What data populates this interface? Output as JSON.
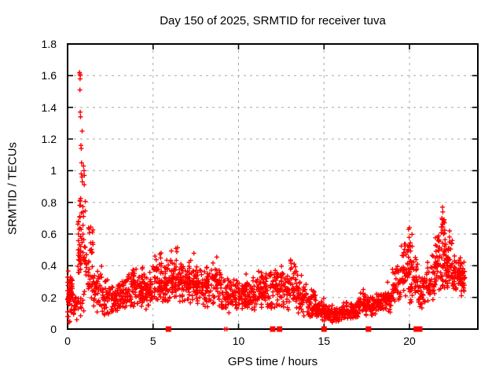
{
  "title": "Day 150 of 2025, SRMTID for receiver tuva",
  "x_axis": {
    "label": "GPS time / hours",
    "tick_labels": [
      "0",
      "5",
      "10",
      "15",
      "20"
    ]
  },
  "y_axis": {
    "label": "SRMTID / TECUs",
    "tick_labels": [
      "0",
      "0.2",
      "0.4",
      "0.6",
      "0.8",
      "1",
      "1.2",
      "1.4",
      "1.6",
      "1.8"
    ]
  },
  "colors": {
    "points": "#ff0000",
    "grid": "#a8a8a8",
    "axis": "#000000",
    "background": "#ffffff",
    "text": "#000000"
  },
  "chart_data": {
    "type": "scatter",
    "title": "Day 150 of 2025, SRMTID for receiver tuva",
    "xlabel": "GPS time / hours",
    "ylabel": "SRMTID / TECUs",
    "xlim": [
      0,
      24
    ],
    "ylim": [
      0,
      1.8
    ],
    "x_ticks": [
      0,
      5,
      10,
      15,
      20
    ],
    "y_ticks": [
      0,
      0.2,
      0.4,
      0.6,
      0.8,
      1.0,
      1.2,
      1.4,
      1.6,
      1.8
    ],
    "grid": true,
    "legend": false,
    "marker": "plus",
    "marker_color": "#ff0000",
    "bins_format": [
      "hour_start",
      "hour_end",
      "value_min",
      "value_max",
      "n_points"
    ],
    "bins": [
      [
        0.0,
        0.3,
        0.14,
        0.38,
        55
      ],
      [
        0.0,
        0.3,
        0.04,
        0.14,
        8
      ],
      [
        0.3,
        0.6,
        0.05,
        0.28,
        22
      ],
      [
        0.6,
        1.05,
        0.28,
        0.92,
        60
      ],
      [
        0.6,
        1.0,
        0.03,
        0.26,
        14
      ],
      [
        1.05,
        1.5,
        0.18,
        0.68,
        40
      ],
      [
        1.5,
        2.0,
        0.08,
        0.44,
        38
      ],
      [
        2.0,
        2.5,
        0.08,
        0.34,
        45
      ],
      [
        2.5,
        3.0,
        0.09,
        0.31,
        45
      ],
      [
        3.0,
        3.5,
        0.12,
        0.36,
        46
      ],
      [
        3.5,
        4.0,
        0.13,
        0.4,
        46
      ],
      [
        4.0,
        4.5,
        0.12,
        0.43,
        50
      ],
      [
        4.5,
        5.0,
        0.12,
        0.38,
        46
      ],
      [
        5.0,
        5.5,
        0.15,
        0.53,
        50
      ],
      [
        5.5,
        6.0,
        0.15,
        0.45,
        50
      ],
      [
        6.0,
        6.5,
        0.17,
        0.55,
        50
      ],
      [
        6.5,
        7.0,
        0.15,
        0.46,
        50
      ],
      [
        7.0,
        7.5,
        0.16,
        0.48,
        50
      ],
      [
        7.5,
        8.0,
        0.14,
        0.42,
        46
      ],
      [
        8.0,
        8.5,
        0.12,
        0.46,
        45
      ],
      [
        8.5,
        9.0,
        0.12,
        0.48,
        45
      ],
      [
        9.0,
        9.5,
        0.1,
        0.36,
        40
      ],
      [
        9.5,
        10.0,
        0.1,
        0.38,
        40
      ],
      [
        10.0,
        10.5,
        0.1,
        0.36,
        45
      ],
      [
        10.5,
        11.0,
        0.1,
        0.33,
        45
      ],
      [
        11.0,
        11.5,
        0.11,
        0.41,
        45
      ],
      [
        11.5,
        12.0,
        0.1,
        0.45,
        45
      ],
      [
        12.0,
        12.5,
        0.1,
        0.42,
        45
      ],
      [
        12.5,
        13.0,
        0.1,
        0.41,
        42
      ],
      [
        13.0,
        13.5,
        0.11,
        0.48,
        42
      ],
      [
        13.5,
        14.0,
        0.08,
        0.36,
        42
      ],
      [
        14.0,
        14.5,
        0.06,
        0.28,
        42
      ],
      [
        14.5,
        15.0,
        0.05,
        0.22,
        42
      ],
      [
        15.0,
        15.5,
        0.04,
        0.18,
        46
      ],
      [
        15.5,
        16.0,
        0.04,
        0.16,
        46
      ],
      [
        16.0,
        16.5,
        0.05,
        0.18,
        46
      ],
      [
        16.5,
        17.0,
        0.06,
        0.2,
        42
      ],
      [
        17.0,
        17.5,
        0.07,
        0.25,
        42
      ],
      [
        17.5,
        18.0,
        0.08,
        0.22,
        42
      ],
      [
        18.0,
        18.5,
        0.09,
        0.26,
        42
      ],
      [
        18.5,
        19.0,
        0.1,
        0.3,
        42
      ],
      [
        19.0,
        19.5,
        0.12,
        0.42,
        42
      ],
      [
        19.5,
        20.0,
        0.18,
        0.6,
        46
      ],
      [
        19.9,
        20.2,
        0.35,
        0.64,
        14
      ],
      [
        20.0,
        20.5,
        0.15,
        0.52,
        38
      ],
      [
        20.5,
        21.0,
        0.12,
        0.38,
        36
      ],
      [
        21.0,
        21.5,
        0.15,
        0.48,
        45
      ],
      [
        21.5,
        22.0,
        0.22,
        0.66,
        52
      ],
      [
        21.85,
        22.1,
        0.55,
        0.77,
        12
      ],
      [
        22.0,
        22.5,
        0.25,
        0.6,
        55
      ],
      [
        22.5,
        23.0,
        0.22,
        0.5,
        55
      ],
      [
        23.0,
        23.25,
        0.2,
        0.45,
        26
      ]
    ],
    "outliers": [
      [
        0.7,
        1.62
      ],
      [
        0.72,
        1.61
      ],
      [
        0.74,
        1.6
      ],
      [
        0.73,
        1.58
      ],
      [
        0.72,
        1.51
      ],
      [
        0.74,
        1.37
      ],
      [
        0.76,
        1.34
      ],
      [
        0.85,
        1.25
      ],
      [
        0.78,
        1.16
      ],
      [
        0.8,
        1.14
      ],
      [
        0.82,
        1.05
      ],
      [
        0.93,
        1.03
      ],
      [
        0.96,
        1.0
      ],
      [
        0.8,
        0.98
      ],
      [
        0.98,
        0.97
      ],
      [
        0.84,
        0.96
      ],
      [
        0.86,
        0.93
      ],
      [
        19.95,
        0.63
      ],
      [
        20.0,
        0.64
      ],
      [
        21.9,
        0.7
      ],
      [
        21.93,
        0.77
      ],
      [
        21.95,
        0.74
      ],
      [
        22.35,
        0.62
      ],
      [
        17.3,
        0.25
      ],
      [
        23.2,
        0.24
      ]
    ],
    "zero_markers": {
      "squares": [
        5.9,
        12.0,
        12.4,
        15.0,
        17.6,
        20.4,
        20.6
      ],
      "plus_marks": [
        9.2,
        9.32
      ]
    }
  }
}
